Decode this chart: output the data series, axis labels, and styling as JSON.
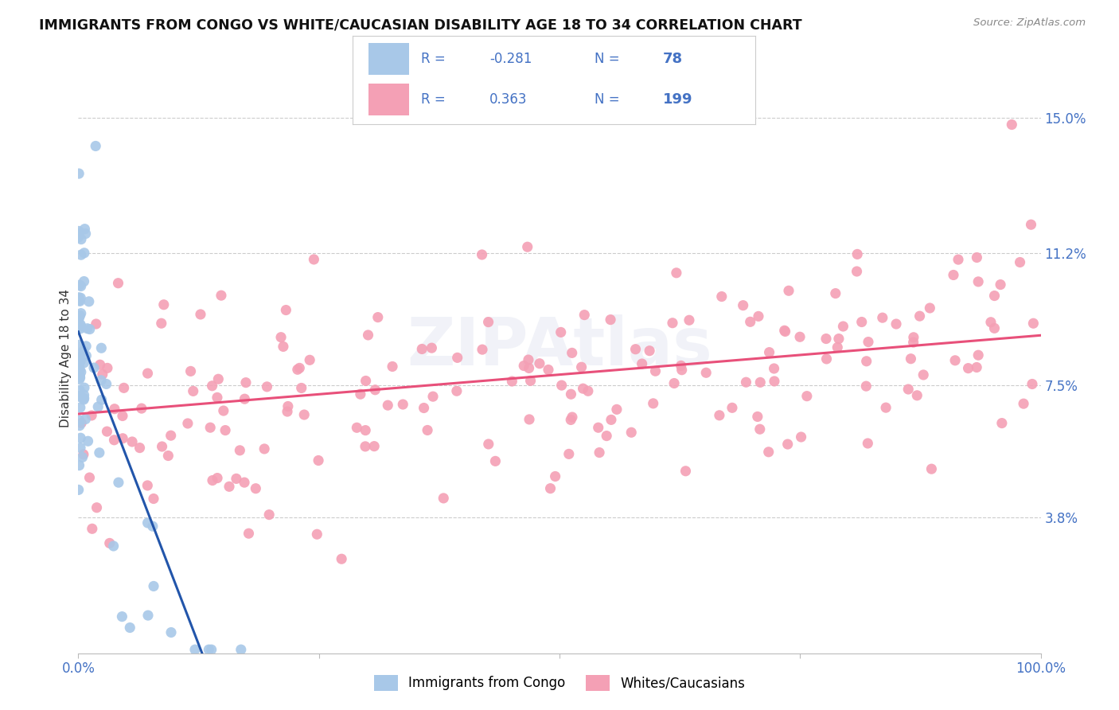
{
  "title": "IMMIGRANTS FROM CONGO VS WHITE/CAUCASIAN DISABILITY AGE 18 TO 34 CORRELATION CHART",
  "source": "Source: ZipAtlas.com",
  "ylabel": "Disability Age 18 to 34",
  "ytick_labels": [
    "15.0%",
    "11.2%",
    "7.5%",
    "3.8%"
  ],
  "ytick_values": [
    0.15,
    0.112,
    0.075,
    0.038
  ],
  "xlim": [
    0.0,
    1.0
  ],
  "ylim": [
    0.0,
    0.165
  ],
  "congo_R": -0.281,
  "congo_N": 78,
  "white_R": 0.363,
  "white_N": 199,
  "congo_color": "#a8c8e8",
  "white_color": "#f4a0b5",
  "congo_line_color": "#2255aa",
  "white_line_color": "#e8507a",
  "legend_items": [
    "Immigrants from Congo",
    "Whites/Caucasians"
  ],
  "legend_text_color": "#4472c4",
  "watermark": "ZIPAtlas",
  "background_color": "#ffffff",
  "grid_color": "#cccccc"
}
